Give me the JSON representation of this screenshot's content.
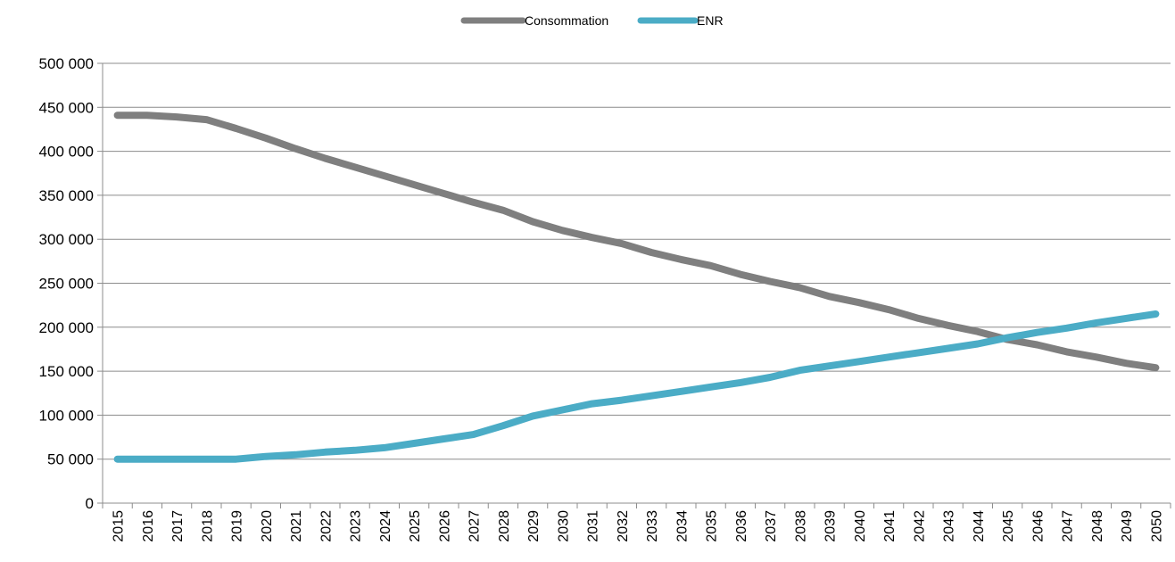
{
  "chart_data": {
    "type": "line",
    "title": "",
    "xlabel": "",
    "ylabel": "",
    "ylim": [
      0,
      500000
    ],
    "y_ticks": [
      0,
      50000,
      100000,
      150000,
      200000,
      250000,
      300000,
      350000,
      400000,
      450000,
      500000
    ],
    "y_tick_labels": [
      "0",
      "50 000",
      "100 000",
      "150 000",
      "200 000",
      "250 000",
      "300 000",
      "350 000",
      "400 000",
      "450 000",
      "500 000"
    ],
    "grid": true,
    "legend_position": "top-center",
    "categories": [
      "2015",
      "2016",
      "2017",
      "2018",
      "2019",
      "2020",
      "2021",
      "2022",
      "2023",
      "2024",
      "2025",
      "2026",
      "2027",
      "2028",
      "2029",
      "2030",
      "2031",
      "2032",
      "2033",
      "2034",
      "2035",
      "2036",
      "2037",
      "2038",
      "2039",
      "2040",
      "2041",
      "2042",
      "2043",
      "2044",
      "2045",
      "2046",
      "2047",
      "2048",
      "2049",
      "2050"
    ],
    "series": [
      {
        "name": "Consommation",
        "color": "#7f7f7f",
        "values": [
          441000,
          441000,
          439000,
          436000,
          426000,
          415000,
          403000,
          392000,
          382000,
          372000,
          362000,
          352000,
          342000,
          333000,
          320000,
          310000,
          302000,
          295000,
          285000,
          277000,
          270000,
          260000,
          252000,
          245000,
          235000,
          228000,
          220000,
          210000,
          202000,
          195000,
          186000,
          180000,
          172000,
          166000,
          159000,
          154000
        ]
      },
      {
        "name": "ENR",
        "color": "#4bacc6",
        "values": [
          50000,
          50000,
          50000,
          50000,
          50000,
          53000,
          55000,
          58000,
          60000,
          63000,
          68000,
          73000,
          78000,
          88000,
          99000,
          106000,
          113000,
          117000,
          122000,
          127000,
          132000,
          137000,
          143000,
          151000,
          156000,
          161000,
          166000,
          171000,
          176000,
          181000,
          188000,
          194000,
          199000,
          205000,
          210000,
          215000
        ]
      }
    ]
  }
}
